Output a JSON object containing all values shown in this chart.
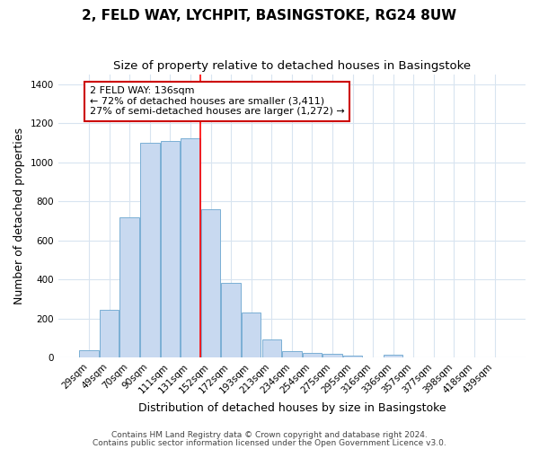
{
  "title": "2, FELD WAY, LYCHPIT, BASINGSTOKE, RG24 8UW",
  "subtitle": "Size of property relative to detached houses in Basingstoke",
  "xlabel": "Distribution of detached houses by size in Basingstoke",
  "ylabel": "Number of detached properties",
  "categories": [
    "29sqm",
    "49sqm",
    "70sqm",
    "90sqm",
    "111sqm",
    "131sqm",
    "152sqm",
    "172sqm",
    "193sqm",
    "213sqm",
    "234sqm",
    "254sqm",
    "275sqm",
    "295sqm",
    "316sqm",
    "336sqm",
    "357sqm",
    "377sqm",
    "398sqm",
    "418sqm",
    "439sqm"
  ],
  "values": [
    35,
    245,
    720,
    1100,
    1110,
    1125,
    760,
    380,
    230,
    90,
    30,
    25,
    20,
    10,
    0,
    12,
    0,
    0,
    0,
    0,
    0
  ],
  "bar_color": "#c8d9f0",
  "bar_edge_color": "#7aafd4",
  "red_line_x": 5.5,
  "annotation_text": "2 FELD WAY: 136sqm\n← 72% of detached houses are smaller (3,411)\n27% of semi-detached houses are larger (1,272) →",
  "annotation_box_color": "white",
  "annotation_box_edge_color": "#cc0000",
  "footer1": "Contains HM Land Registry data © Crown copyright and database right 2024.",
  "footer2": "Contains public sector information licensed under the Open Government Licence v3.0.",
  "bg_color": "#ffffff",
  "plot_bg_color": "#ffffff",
  "grid_color": "#d8e4f0",
  "ylim": [
    0,
    1450
  ],
  "yticks": [
    0,
    200,
    400,
    600,
    800,
    1000,
    1200,
    1400
  ],
  "title_fontsize": 11,
  "subtitle_fontsize": 9.5,
  "axis_label_fontsize": 9,
  "tick_fontsize": 7.5,
  "footer_fontsize": 6.5,
  "annot_fontsize": 8
}
